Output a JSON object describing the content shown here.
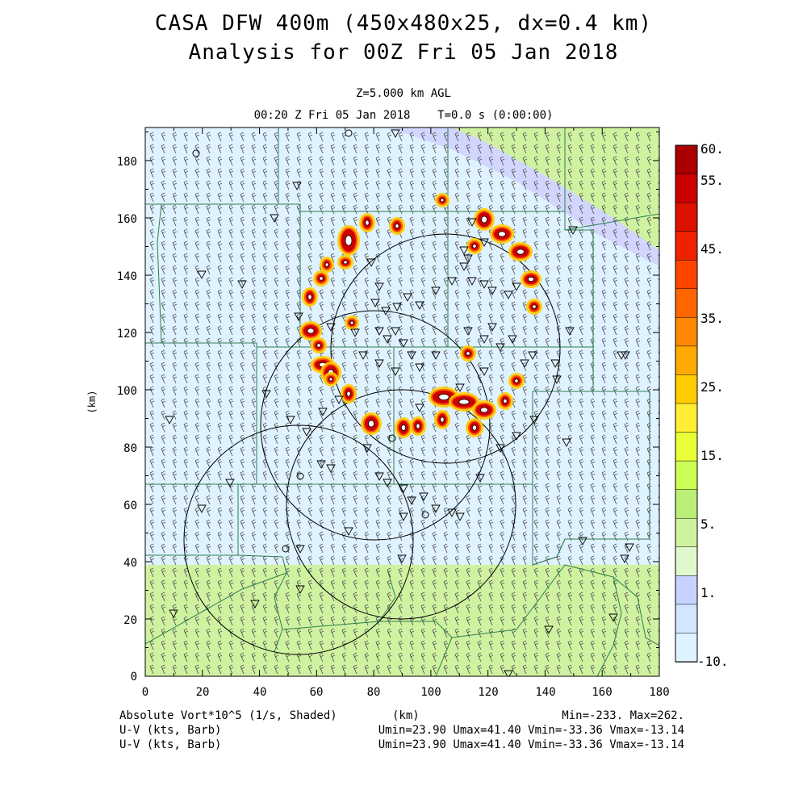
{
  "title_line1": "CASA DFW 400m (450x480x25, dx=0.4 km)",
  "title_line2": "Analysis for 00Z Fri 05 Jan 2018",
  "level_label": "Z=5.000 km AGL",
  "time_label": "00:20 Z Fri 05 Jan 2018    T=0.0 s (0:00:00)",
  "x_axis": {
    "label": "(km)",
    "ticks": [
      "0",
      "20",
      "40",
      "60",
      "80",
      "100",
      "120",
      "140",
      "160",
      "180"
    ],
    "range": [
      0,
      180
    ]
  },
  "y_axis": {
    "label": "(km)",
    "ticks": [
      "0",
      "20",
      "40",
      "60",
      "80",
      "100",
      "120",
      "140",
      "160",
      "180"
    ],
    "range": [
      0,
      192
    ]
  },
  "colorbar": {
    "labels": [
      "60.",
      "55.",
      "45.",
      "35.",
      "25.",
      "15.",
      "5.",
      "1.",
      "-10."
    ],
    "colors": [
      "#aa0000",
      "#cc0000",
      "#dd1100",
      "#ee2200",
      "#ff4400",
      "#ff6600",
      "#ff8800",
      "#ffaa00",
      "#ffcc00",
      "#ffee33",
      "#e8ff3a",
      "#ccff55",
      "#bbee77",
      "#cff2a0",
      "#e0f8cc",
      "#c8d2ff",
      "#d2e6ff",
      "#dff2ff"
    ]
  },
  "field_name": "Absolute Vort*10^5 (1/s, Shaded)",
  "x_units": "(km)",
  "field_range": "Min=-233. Max=262.",
  "barb_label_1": "U-V (kts, Barb)",
  "barb_stats_1": "Umin=23.90 Umax=41.40 Vmin=-33.36 Vmax=-13.14",
  "barb_label_2": "U-V (kts, Barb)",
  "barb_stats_2": "Umin=23.90 Umax=41.40 Vmin=-33.36 Vmax=-13.14",
  "colors": {
    "background": "#dff2ff",
    "green_band": "#cff2a0",
    "lavender": "#d2d6ff",
    "county_lines": "#2f7f4f"
  }
}
